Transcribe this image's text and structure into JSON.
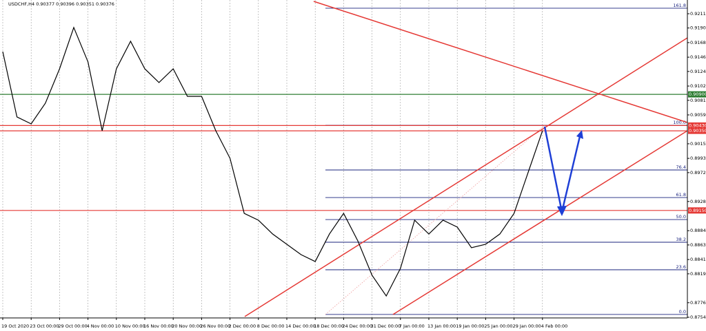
{
  "chart_data": {
    "type": "line",
    "title": "USDCHF,H4  0.90377 0.90396 0.90351 0.90376",
    "categories": [
      "19 Oct 2020",
      null,
      "23 Oct 00:00",
      null,
      "29 Oct 00:00",
      null,
      "4 Nov 00:00",
      null,
      "10 Nov 00:00",
      null,
      "16 Nov 00:00",
      null,
      "20 Nov 00:00",
      null,
      "26 Nov 00:00",
      null,
      "2 Dec 00:00",
      null,
      "8 Dec 00:00",
      null,
      "14 Dec 00:00",
      null,
      "18 Dec 00:00",
      null,
      "24 Dec 00:00",
      null,
      "31 Dec 00:00",
      null,
      "7 Jan 00:00",
      null,
      "13 Jan 00:00",
      null,
      "19 Jan 00:00",
      null,
      "25 Jan 00:00",
      null,
      "29 Jan 00:00",
      null,
      "4 Feb 00:00"
    ],
    "values": [
      0.91544,
      0.90559,
      0.90455,
      0.90766,
      0.91285,
      0.91908,
      0.91389,
      0.90351,
      0.91285,
      0.917,
      0.91285,
      0.91078,
      0.91285,
      0.9087,
      0.9087,
      0.90351,
      0.89936,
      0.89106,
      0.89003,
      0.88795,
      0.8864,
      0.88484,
      0.8838,
      0.88795,
      0.89106,
      0.88691,
      0.88173,
      0.87861,
      0.88276,
      0.89003,
      0.88795,
      0.89003,
      0.88899,
      0.88588,
      0.8864,
      0.88795,
      0.89106,
      0.89729,
      0.90351
    ],
    "color": "#000000",
    "ylim": [
      0.8753,
      0.92322
    ],
    "yticks": [
      {
        "value": 0.92115,
        "label": "0.92115"
      },
      {
        "value": 0.919,
        "label": "0.91900"
      },
      {
        "value": 0.9168,
        "label": "0.91680"
      },
      {
        "value": 0.9146,
        "label": "0.91460"
      },
      {
        "value": 0.91245,
        "label": "0.91245"
      },
      {
        "value": 0.91025,
        "label": "0.91025"
      },
      {
        "value": 0.9081,
        "label": "0.90810"
      },
      {
        "value": 0.9059,
        "label": "0.90590"
      },
      {
        "value": 0.90155,
        "label": "0.90155"
      },
      {
        "value": 0.89935,
        "label": "0.89935"
      },
      {
        "value": 0.8972,
        "label": "0.89720"
      },
      {
        "value": 0.89285,
        "label": "0.89285"
      },
      {
        "value": 0.88845,
        "label": "0.88845"
      },
      {
        "value": 0.8863,
        "label": "0.88630"
      },
      {
        "value": 0.8841,
        "label": "0.88410"
      },
      {
        "value": 0.88195,
        "label": "0.88195"
      },
      {
        "value": 0.8776,
        "label": "0.87760"
      },
      {
        "value": 0.8754,
        "label": "0.87540"
      }
    ],
    "fib_levels": [
      {
        "value": 0.92198,
        "label": "161.8"
      },
      {
        "value": 0.90434,
        "label": "100.0"
      },
      {
        "value": 0.8976,
        "label": "76.4"
      },
      {
        "value": 0.89345,
        "label": "61.8"
      },
      {
        "value": 0.89013,
        "label": "50.0"
      },
      {
        "value": 0.88671,
        "label": "38.2"
      },
      {
        "value": 0.88256,
        "label": "23.6"
      },
      {
        "value": 0.87582,
        "label": "0.0"
      }
    ],
    "fib_color": "#1a237e",
    "price_lines": [
      {
        "value": 0.909,
        "label": "0.90900",
        "color": "#2e7d32"
      },
      {
        "value": 0.9043,
        "label": "0.90430",
        "color": "#e53935"
      },
      {
        "value": 0.9035,
        "label": "0.90350",
        "color": "#e53935"
      },
      {
        "value": 0.8915,
        "label": "0.89150",
        "color": "#e53935"
      }
    ],
    "grid": true
  }
}
